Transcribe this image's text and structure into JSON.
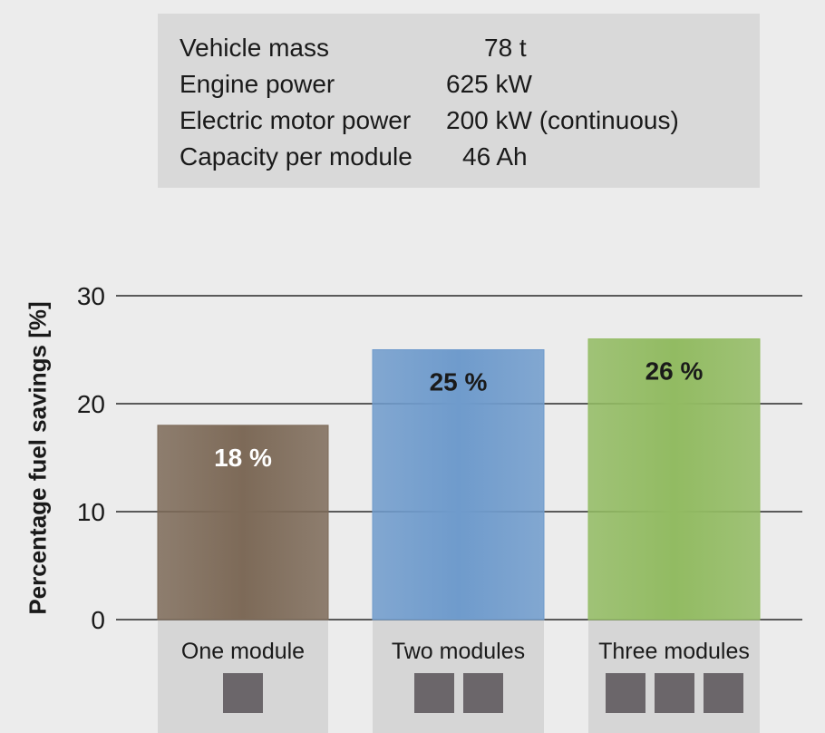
{
  "specs": [
    {
      "label": "Vehicle mass",
      "value": "78 t"
    },
    {
      "label": "Engine power",
      "value": "625 kW"
    },
    {
      "label": "Electric motor power",
      "value": "200 kW (continuous)"
    },
    {
      "label": "Capacity per module",
      "value": "46 Ah"
    }
  ],
  "chart_data": {
    "type": "bar",
    "title": "",
    "xlabel": "",
    "ylabel": "Percentage fuel savings [%]",
    "ylim": [
      0,
      30
    ],
    "yticks": [
      "0",
      "10",
      "20",
      "30"
    ],
    "grid": true,
    "categories": [
      "One module",
      "Two modules",
      "Three modules"
    ],
    "values": [
      18,
      25,
      26
    ],
    "data_labels": [
      "18 %",
      "25 %",
      "26 %"
    ],
    "module_counts": [
      1,
      2,
      3
    ],
    "colors": [
      "#7d6a58",
      "#6f9bcc",
      "#92bb62"
    ],
    "label_colors": [
      "#ffffff",
      "#1a1a1a",
      "#1a1a1a"
    ]
  }
}
